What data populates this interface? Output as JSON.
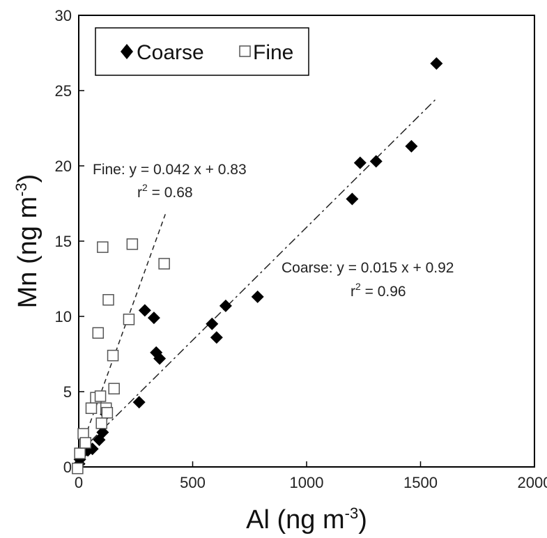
{
  "chart_data": {
    "type": "scatter",
    "xlabel": "Al (ng m⁻³)",
    "ylabel": "Mn (ng m⁻³)",
    "xlim": [
      0,
      2000
    ],
    "ylim": [
      0,
      30
    ],
    "xticks": [
      "0",
      "500",
      "1000",
      "1500",
      "2000"
    ],
    "yticks": [
      "0",
      "5",
      "10",
      "15",
      "20",
      "25",
      "30"
    ],
    "legend_position": "top-left",
    "grid": false,
    "series": [
      {
        "name": "Coarse",
        "marker": "filled-diamond",
        "color": "#000000",
        "points": [
          [
            2,
            0.2
          ],
          [
            5,
            0.5
          ],
          [
            10,
            0.8
          ],
          [
            20,
            1.0
          ],
          [
            40,
            1.1
          ],
          [
            60,
            1.2
          ],
          [
            90,
            1.8
          ],
          [
            105,
            2.3
          ],
          [
            120,
            3.5
          ],
          [
            265,
            4.3
          ],
          [
            290,
            10.4
          ],
          [
            330,
            9.9
          ],
          [
            340,
            7.6
          ],
          [
            355,
            7.2
          ],
          [
            585,
            9.5
          ],
          [
            605,
            8.6
          ],
          [
            645,
            10.7
          ],
          [
            785,
            11.3
          ],
          [
            1200,
            17.8
          ],
          [
            1235,
            20.2
          ],
          [
            1305,
            20.3
          ],
          [
            1460,
            21.3
          ],
          [
            1570,
            26.8
          ]
        ]
      },
      {
        "name": "Fine",
        "marker": "open-square",
        "color": "#000000",
        "points": [
          [
            -5,
            -0.1
          ],
          [
            5,
            0.9
          ],
          [
            20,
            2.2
          ],
          [
            30,
            1.6
          ],
          [
            55,
            3.9
          ],
          [
            75,
            4.6
          ],
          [
            85,
            8.9
          ],
          [
            95,
            4.7
          ],
          [
            100,
            2.9
          ],
          [
            105,
            14.6
          ],
          [
            120,
            3.9
          ],
          [
            125,
            3.6
          ],
          [
            130,
            11.1
          ],
          [
            150,
            7.4
          ],
          [
            155,
            5.2
          ],
          [
            220,
            9.8
          ],
          [
            235,
            14.8
          ],
          [
            375,
            13.5
          ]
        ]
      }
    ],
    "fits": [
      {
        "series": "Fine",
        "style": "dashed",
        "slope": 0.042,
        "intercept": 0.83,
        "x_range": [
          0,
          380
        ]
      },
      {
        "series": "Coarse",
        "style": "dash-dot",
        "slope": 0.015,
        "intercept": 0.92,
        "x_range": [
          0,
          1570
        ]
      }
    ],
    "annotations": {
      "fine_eq": "Fine: y = 0.042 x + 0.83",
      "fine_r2_base": "r",
      "fine_r2_sup": "2",
      "fine_r2_rest": " = 0.68",
      "coarse_eq": "Coarse: y = 0.015 x + 0.92",
      "coarse_r2_base": "r",
      "coarse_r2_sup": "2",
      "coarse_r2_rest": " = 0.96"
    },
    "xlabel_parts": {
      "main": "Al (ng m",
      "sup": "-3",
      "close": ")"
    },
    "ylabel_parts": {
      "main": "Mn (ng m",
      "sup": "-3",
      "close": ")"
    }
  }
}
